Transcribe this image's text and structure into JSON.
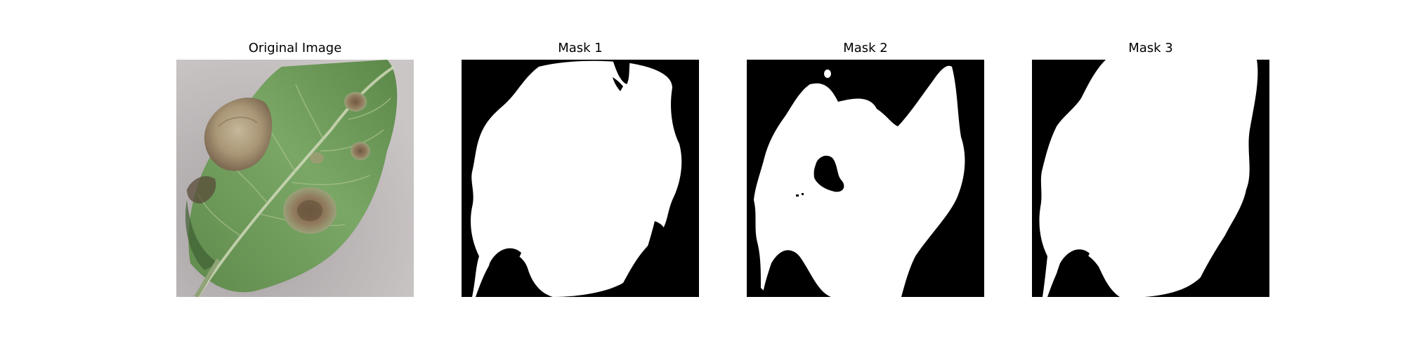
{
  "panels": [
    {
      "title": "Original Image",
      "kind": "photo",
      "subject": "leaf-with-lesions"
    },
    {
      "title": "Mask 1",
      "kind": "binary-mask"
    },
    {
      "title": "Mask 2",
      "kind": "binary-mask"
    },
    {
      "title": "Mask 3",
      "kind": "binary-mask"
    }
  ],
  "colors": {
    "background": "#ffffff",
    "mask_background": "#000000",
    "mask_foreground": "#ffffff",
    "photo_backdrop": "#b9b3b4",
    "leaf_green": "#6f9b58",
    "leaf_dark": "#4d7a3c",
    "lesion_brown": "#8a7257",
    "lesion_tan": "#b7a88c"
  }
}
